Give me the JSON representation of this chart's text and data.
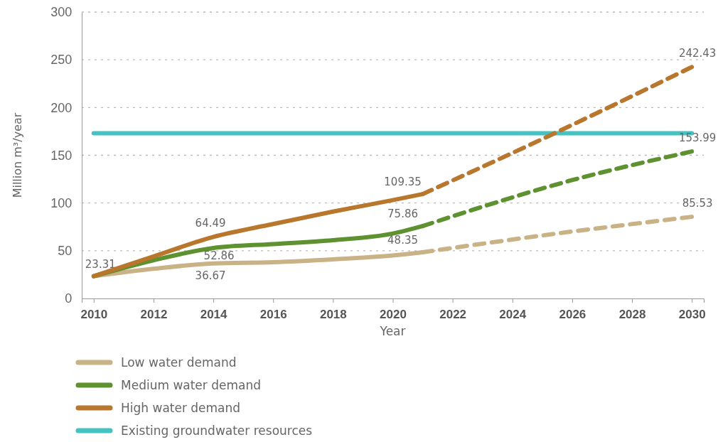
{
  "chart_data": {
    "type": "line",
    "xlabel": "Year",
    "ylabel": "Million m³/year",
    "xlim": [
      2009.6,
      2030.4
    ],
    "xticks": [
      2010,
      2012,
      2014,
      2016,
      2018,
      2020,
      2022,
      2024,
      2026,
      2028,
      2030
    ],
    "ylim": [
      0,
      300
    ],
    "yticks": [
      0,
      50,
      100,
      150,
      200,
      250,
      300
    ],
    "grid": "y",
    "legend": "bottom",
    "marker": "none",
    "series": [
      {
        "name": "Low water demand",
        "color": "#c9b285",
        "line_style": "solid",
        "x": [
          2010,
          2012,
          2014,
          2016,
          2018,
          2020,
          2021
        ],
        "values": [
          23.31,
          31,
          36.67,
          38,
          41,
          45,
          48.35
        ],
        "value_labels": [
          "23.31",
          null,
          "36.67",
          null,
          null,
          null,
          "48.35"
        ]
      },
      {
        "name": "Medium water demand",
        "color": "#5e9130",
        "line_style": "solid",
        "x": [
          2010,
          2012,
          2014,
          2016,
          2018,
          2020,
          2021
        ],
        "values": [
          23.31,
          40,
          52.86,
          57,
          61,
          68,
          75.86
        ],
        "value_labels": [
          null,
          null,
          "52.86",
          null,
          null,
          null,
          "75.86"
        ]
      },
      {
        "name": "High water demand",
        "color": "#b8772c",
        "line_style": "solid",
        "x": [
          2010,
          2012,
          2014,
          2016,
          2018,
          2020,
          2021
        ],
        "values": [
          23.31,
          44,
          64.49,
          78,
          91,
          103,
          109.35
        ],
        "value_labels": [
          null,
          null,
          "64.49",
          null,
          null,
          null,
          "109.35"
        ]
      },
      {
        "name": "Existing groundwater resources",
        "color": "#45c2c2",
        "line_style": "solid",
        "x": [
          2010,
          2030
        ],
        "values": [
          173,
          173
        ]
      },
      {
        "color": "#c9b285",
        "line_style": "dashed",
        "x": [
          2021,
          2025,
          2030
        ],
        "values": [
          48.35,
          66,
          85.53
        ],
        "value_labels": [
          null,
          null,
          "85.53"
        ]
      },
      {
        "color": "#5e9130",
        "line_style": "dashed",
        "x": [
          2021,
          2026,
          2030
        ],
        "values": [
          75.86,
          124,
          153.99
        ],
        "value_labels": [
          null,
          null,
          "153.99"
        ]
      },
      {
        "color": "#b8772c",
        "line_style": "dashed",
        "x": [
          2021,
          2025,
          2030
        ],
        "values": [
          109.35,
          167,
          242.43
        ],
        "value_labels": [
          null,
          null,
          "242.43"
        ]
      }
    ]
  }
}
